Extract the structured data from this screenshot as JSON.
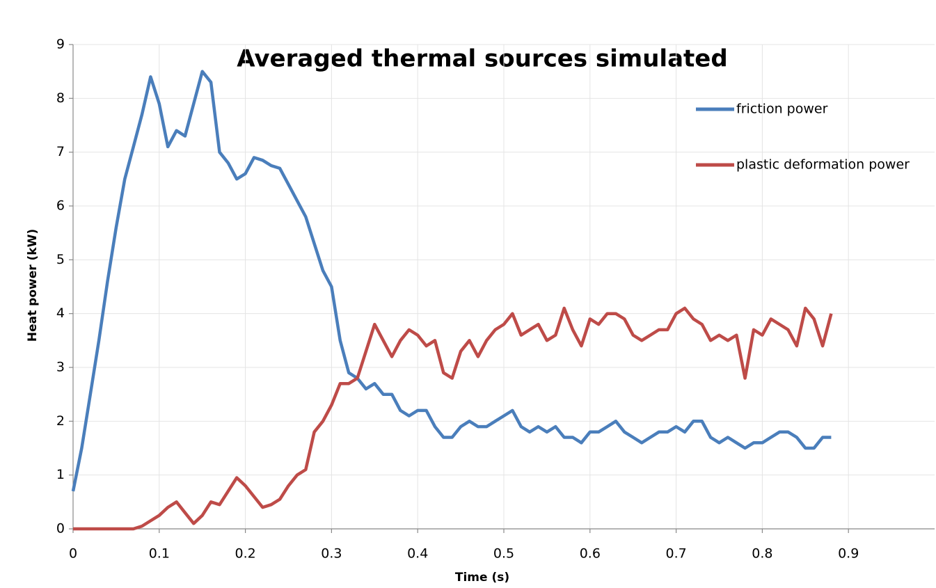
{
  "chart_data": {
    "type": "line",
    "title": "Averaged thermal sources simulated",
    "x_label": "Time (s)",
    "y_label": "Heat power (kW)",
    "x": [
      0,
      0.01,
      0.02,
      0.03,
      0.04,
      0.05,
      0.06,
      0.07,
      0.08,
      0.09,
      0.1,
      0.11,
      0.12,
      0.13,
      0.14,
      0.15,
      0.16,
      0.17,
      0.18,
      0.19,
      0.2,
      0.21,
      0.22,
      0.23,
      0.24,
      0.25,
      0.26,
      0.27,
      0.28,
      0.29,
      0.3,
      0.31,
      0.32,
      0.33,
      0.34,
      0.35,
      0.36,
      0.37,
      0.38,
      0.39,
      0.4,
      0.41,
      0.42,
      0.43,
      0.44,
      0.45,
      0.46,
      0.47,
      0.48,
      0.49,
      0.5,
      0.51,
      0.52,
      0.53,
      0.54,
      0.55,
      0.56,
      0.57,
      0.58,
      0.59,
      0.6,
      0.61,
      0.62,
      0.63,
      0.64,
      0.65,
      0.66,
      0.67,
      0.68,
      0.69,
      0.7,
      0.71,
      0.72,
      0.73,
      0.74,
      0.75,
      0.76,
      0.77,
      0.78,
      0.79,
      0.8,
      0.81,
      0.82,
      0.83,
      0.84,
      0.85,
      0.86,
      0.87,
      0.88
    ],
    "series": [
      {
        "name": "friction power",
        "color": "#4a7ebb",
        "values": [
          0.7,
          1.5,
          2.5,
          3.5,
          4.6,
          5.6,
          6.5,
          7.1,
          7.7,
          8.4,
          7.9,
          7.1,
          7.4,
          7.3,
          7.9,
          8.5,
          8.3,
          7.0,
          6.8,
          6.5,
          6.6,
          6.9,
          6.85,
          6.75,
          6.7,
          6.4,
          6.1,
          5.8,
          5.3,
          4.8,
          4.5,
          3.5,
          2.9,
          2.8,
          2.6,
          2.7,
          2.5,
          2.5,
          2.2,
          2.1,
          2.2,
          2.2,
          1.9,
          1.7,
          1.7,
          1.9,
          2.0,
          1.9,
          1.9,
          2.0,
          2.1,
          2.2,
          1.9,
          1.8,
          1.9,
          1.8,
          1.9,
          1.7,
          1.7,
          1.6,
          1.8,
          1.8,
          1.9,
          2.0,
          1.8,
          1.7,
          1.6,
          1.7,
          1.8,
          1.8,
          1.9,
          1.8,
          2.0,
          2.0,
          1.7,
          1.6,
          1.7,
          1.6,
          1.5,
          1.6,
          1.6,
          1.7,
          1.8,
          1.8,
          1.7,
          1.5,
          1.5,
          1.7,
          1.7
        ]
      },
      {
        "name": "plastic deformation power",
        "color": "#be4b48",
        "values": [
          0,
          0,
          0,
          0,
          0,
          0,
          0,
          0,
          0.05,
          0.15,
          0.25,
          0.4,
          0.5,
          0.3,
          0.1,
          0.25,
          0.5,
          0.45,
          0.7,
          0.95,
          0.8,
          0.6,
          0.4,
          0.45,
          0.55,
          0.8,
          1.0,
          1.1,
          1.8,
          2.0,
          2.3,
          2.7,
          2.7,
          2.8,
          3.3,
          3.8,
          3.5,
          3.2,
          3.5,
          3.7,
          3.6,
          3.4,
          3.5,
          2.9,
          2.8,
          3.3,
          3.5,
          3.2,
          3.5,
          3.7,
          3.8,
          4.0,
          3.6,
          3.7,
          3.8,
          3.5,
          3.6,
          4.1,
          3.7,
          3.4,
          3.9,
          3.8,
          4.0,
          4.0,
          3.9,
          3.6,
          3.5,
          3.6,
          3.7,
          3.7,
          4.0,
          4.1,
          3.9,
          3.8,
          3.5,
          3.6,
          3.5,
          3.6,
          2.8,
          3.7,
          3.6,
          3.9,
          3.8,
          3.7,
          3.4,
          4.1,
          3.9,
          3.4,
          4.0
        ]
      }
    ],
    "xlim": [
      0,
      1
    ],
    "xticks": [
      0,
      0.1,
      0.2,
      0.3,
      0.4,
      0.5,
      0.6,
      0.7,
      0.8,
      0.9
    ],
    "ylim": [
      0,
      9
    ],
    "yticks": [
      0,
      1,
      2,
      3,
      4,
      5,
      6,
      7,
      8,
      9
    ],
    "grid": true,
    "legend": "top-right"
  }
}
